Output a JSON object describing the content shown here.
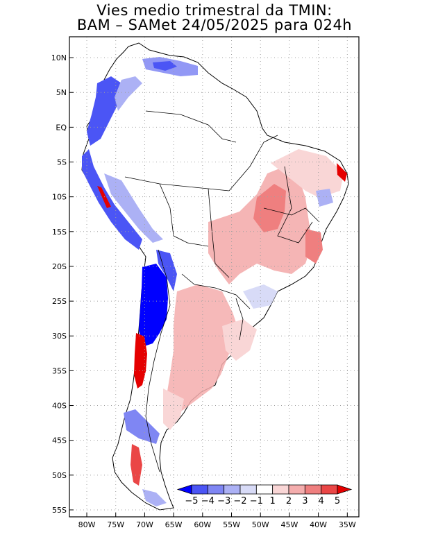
{
  "title": {
    "line1": "Vies medio trimestral da TMIN:",
    "line2": "BAM – SAMet 24/05/2025  para 024h"
  },
  "axes": {
    "x_ticks": [
      "80W",
      "75W",
      "70W",
      "65W",
      "60W",
      "55W",
      "50W",
      "45W",
      "40W",
      "35W"
    ],
    "y_ticks": [
      "10N",
      "5N",
      "EQ",
      "5S",
      "10S",
      "15S",
      "20S",
      "25S",
      "30S",
      "35S",
      "40S",
      "45S",
      "50S",
      "55S"
    ],
    "lon_range": [
      -83,
      -33
    ],
    "lat_range": [
      -56,
      13
    ],
    "grid": "dotted"
  },
  "colorbar": {
    "labels": [
      "−5",
      "−4",
      "−3",
      "−2",
      "−1",
      "1",
      "2",
      "3",
      "4",
      "5"
    ],
    "colors": [
      "#0000ff",
      "#4b55f5",
      "#7f86f3",
      "#acb1f5",
      "#d8dbf7",
      "#ffffff",
      "#f9d6d6",
      "#f4adad",
      "#ef7f7f",
      "#ea4646",
      "#e50000"
    ],
    "colors_note": "bins from below -5 (dark blue) to above 5 (red)"
  },
  "map": {
    "region": "South America",
    "variable": "TMIN bias",
    "colors": {
      "strong_neg": "#0000ff",
      "neg": "#7f86f3",
      "weak_neg": "#d8dbf7",
      "weak_pos": "#f9d6d6",
      "pos": "#f4adad",
      "strong_pos": "#e50000"
    }
  }
}
